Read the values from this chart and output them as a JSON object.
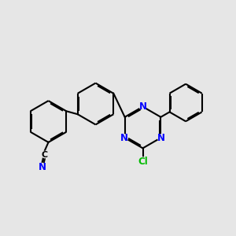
{
  "bg_color": "#e6e6e6",
  "bond_color": "#000000",
  "nitrogen_color": "#0000ff",
  "chlorine_color": "#00bb00",
  "lw": 1.5,
  "dbo": 0.055,
  "fs": 8.5,
  "figsize": [
    3.0,
    3.0
  ],
  "dpi": 100,
  "xlim": [
    0,
    10
  ],
  "ylim": [
    0,
    10
  ]
}
